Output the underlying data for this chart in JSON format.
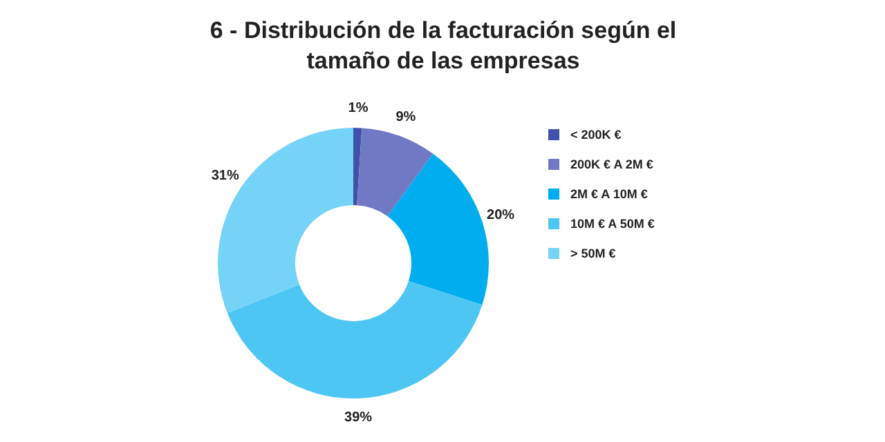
{
  "chart_data": {
    "type": "donut",
    "title": "6 - Distribución de la facturación según el tamaño de las empresas",
    "categories": [
      "< 200K €",
      "200K € A 2M €",
      "2M € A 10M €",
      "10M € A 50M €",
      "> 50M €"
    ],
    "values": [
      1,
      9,
      20,
      39,
      31
    ],
    "value_labels": [
      "1%",
      "9%",
      "20%",
      "39%",
      "31%"
    ],
    "colors": [
      "#3f51a8",
      "#7179c4",
      "#00aeef",
      "#4dc6f4",
      "#75d3f7"
    ],
    "legend": "right"
  }
}
